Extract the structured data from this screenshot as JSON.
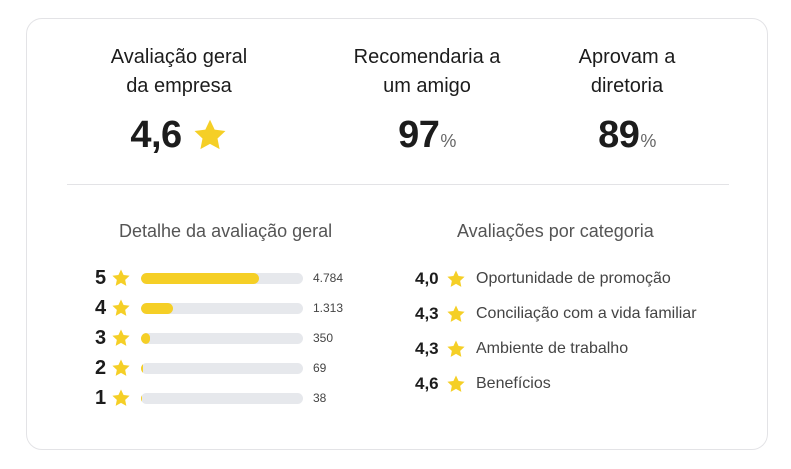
{
  "summary": {
    "overall": {
      "label_line1": "Avaliação geral",
      "label_line2": "da empresa",
      "value": "4,6"
    },
    "recommend": {
      "label_line1": "Recomendaria a",
      "label_line2": "um amigo",
      "value": "97",
      "unit": "%"
    },
    "approve": {
      "label_line1": "Aprovam a",
      "label_line2": "diretoria",
      "value": "89",
      "unit": "%"
    }
  },
  "distribution": {
    "title": "Detalhe da avaliação geral",
    "rows": [
      {
        "stars": "5",
        "count": "4.784",
        "fraction": 0.73
      },
      {
        "stars": "4",
        "count": "1.313",
        "fraction": 0.2
      },
      {
        "stars": "3",
        "count": "350",
        "fraction": 0.053
      },
      {
        "stars": "2",
        "count": "69",
        "fraction": 0.011
      },
      {
        "stars": "1",
        "count": "38",
        "fraction": 0.006
      }
    ]
  },
  "categories": {
    "title": "Avaliações por categoria",
    "items": [
      {
        "value": "4,0",
        "name": "Oportunidade de promoção"
      },
      {
        "value": "4,3",
        "name": "Conciliação com a vida familiar"
      },
      {
        "value": "4,3",
        "name": "Ambiente de trabalho"
      },
      {
        "value": "4,6",
        "name": "Benefícios"
      }
    ]
  },
  "colors": {
    "star": "#f5cf26",
    "bar_track": "#e6e8ec",
    "bar_fill": "#f5cf26"
  },
  "icons": {
    "rating": "star-icon"
  }
}
